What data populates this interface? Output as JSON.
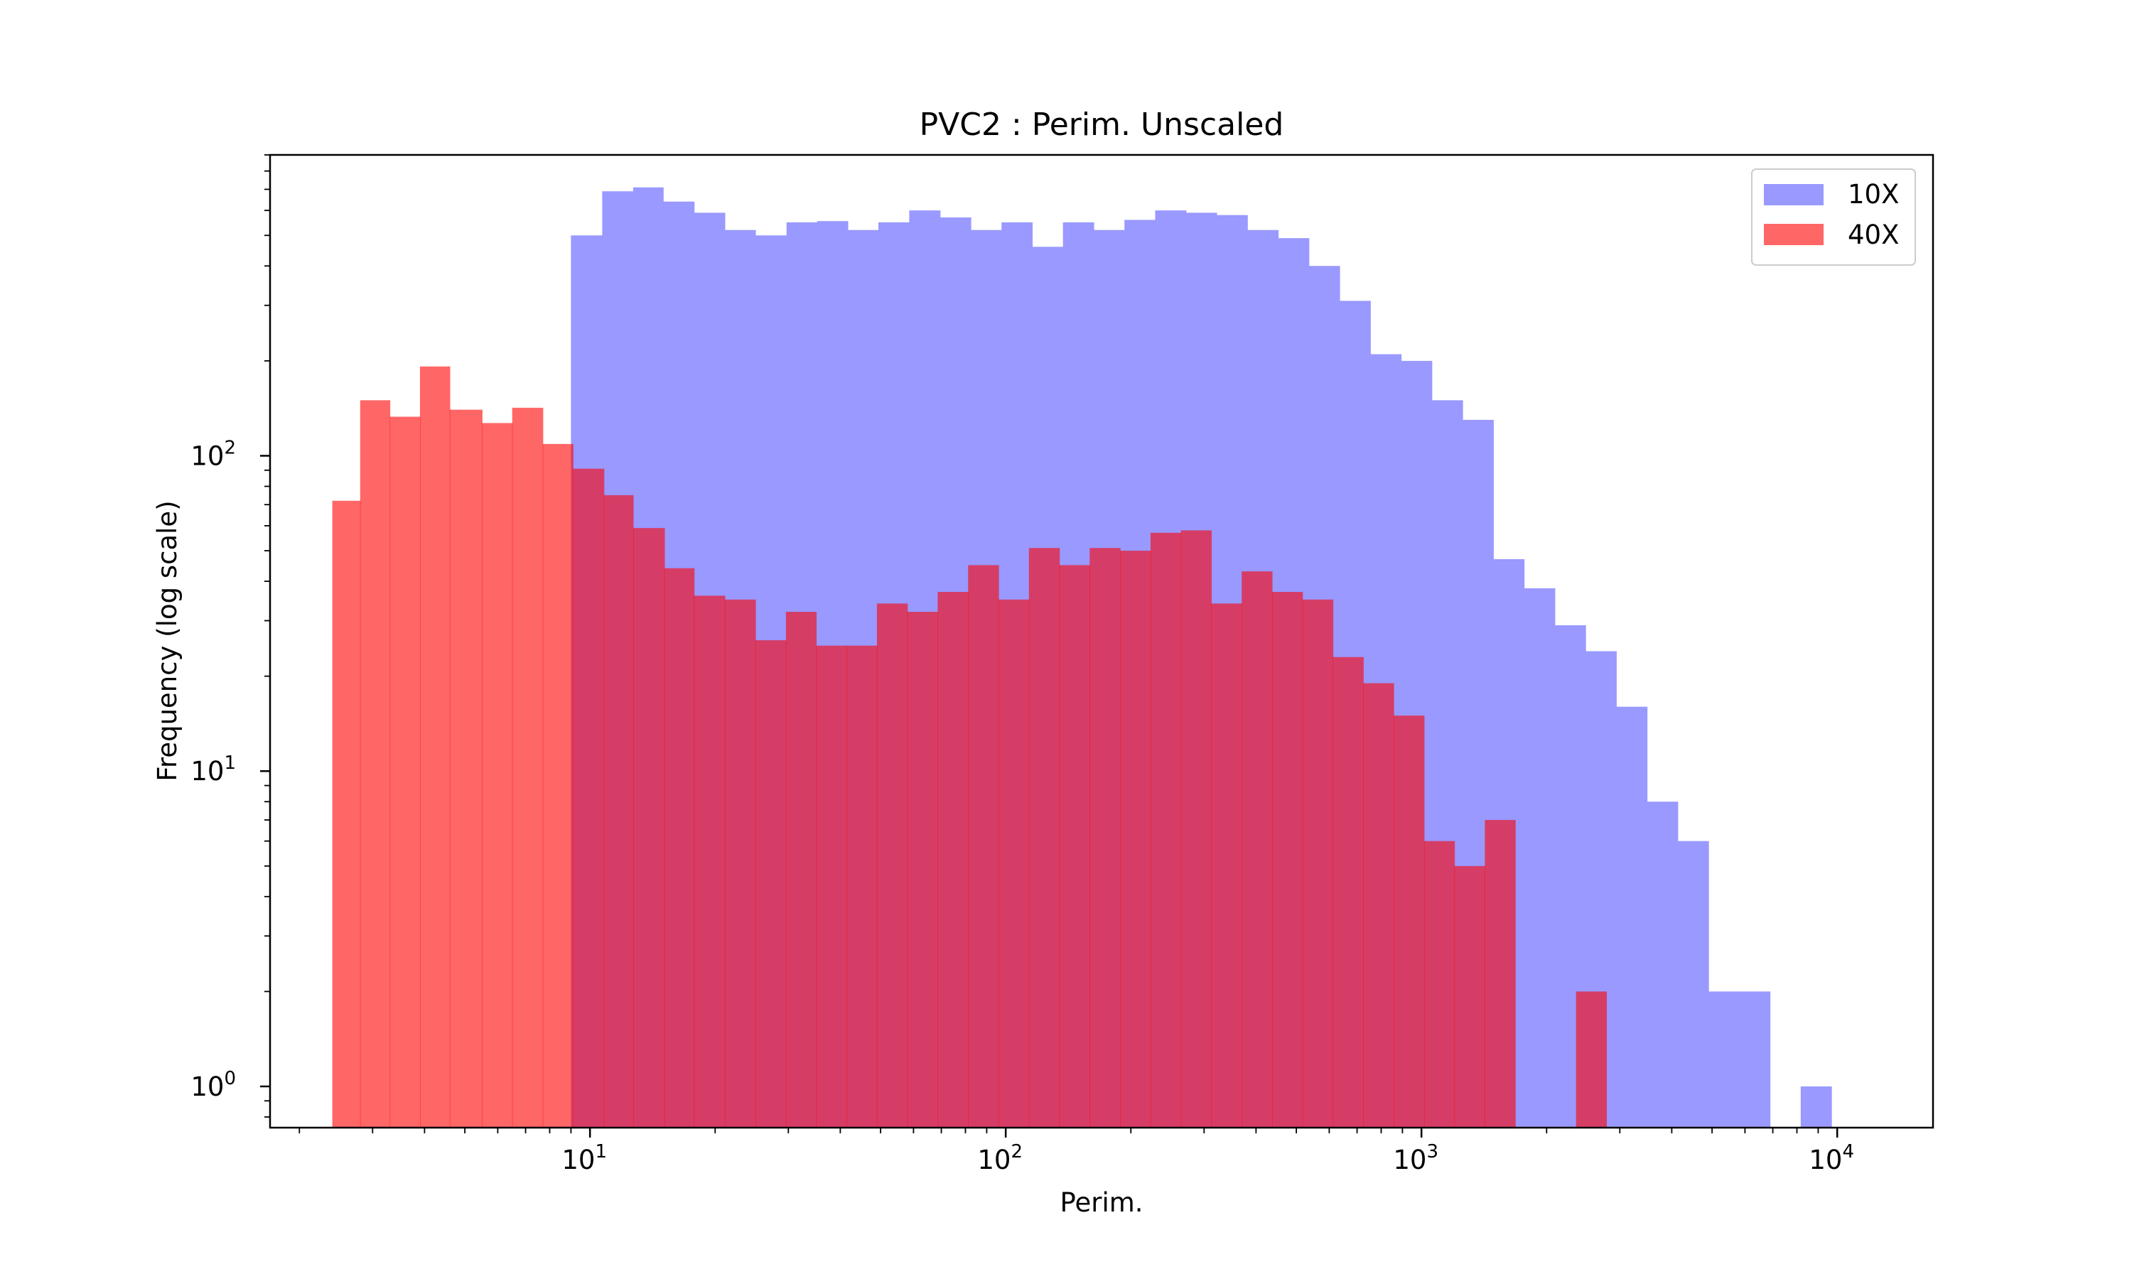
{
  "chart_data": {
    "type": "bar",
    "title": "PVC2 : Perim. Unscaled",
    "xlabel": "Perim.",
    "ylabel": "Frequency (log scale)",
    "xscale": "log",
    "yscale": "log",
    "xlim": [
      1.7,
      17000
    ],
    "ylim": [
      0.74,
      900
    ],
    "grid": false,
    "legend_position": "top-right",
    "x_ticks": [
      {
        "value": 10,
        "base": "10",
        "exp": "1"
      },
      {
        "value": 100,
        "base": "10",
        "exp": "2"
      },
      {
        "value": 1000,
        "base": "10",
        "exp": "3"
      },
      {
        "value": 10000,
        "base": "10",
        "exp": "4"
      }
    ],
    "y_ticks": [
      {
        "value": 1,
        "base": "10",
        "exp": "0"
      },
      {
        "value": 10,
        "base": "10",
        "exp": "1"
      },
      {
        "value": 100,
        "base": "10",
        "exp": "2"
      }
    ],
    "series": [
      {
        "name": "10X",
        "color": "#9999ff",
        "bin_edges": [
          9.0,
          10.7,
          12.7,
          15.0,
          17.8,
          21.1,
          25.0,
          29.7,
          35.2,
          41.7,
          49.4,
          58.6,
          69.5,
          82.4,
          97.7,
          115.8,
          137.3,
          162.8,
          193.0,
          228.8,
          271.3,
          321.6,
          381.3,
          452.1,
          536.0,
          635.5,
          753.5,
          893.3,
          1059.1,
          1255.7,
          1488.8,
          1765.1,
          2092.7,
          2481.1,
          2941.6,
          3487.6,
          4134.9,
          4902.3,
          5812.2,
          6890.9,
          8169.9,
          9686.2,
          11484.0
        ],
        "values": [
          500,
          690,
          710,
          640,
          590,
          520,
          500,
          550,
          555,
          520,
          550,
          600,
          570,
          520,
          550,
          460,
          550,
          520,
          560,
          600,
          590,
          580,
          520,
          490,
          400,
          310,
          210,
          200,
          150,
          130,
          47,
          38,
          29,
          24,
          16,
          8,
          6,
          2,
          2,
          0,
          1,
          0
        ]
      },
      {
        "name": "40X",
        "color": "#ff0000",
        "bin_edges": [
          2.4,
          2.8,
          3.3,
          3.9,
          4.6,
          5.5,
          6.5,
          7.7,
          9.1,
          10.8,
          12.7,
          15.1,
          17.8,
          21.1,
          25.0,
          29.6,
          35.0,
          41.4,
          49.0,
          58.0,
          68.6,
          81.2,
          96.1,
          113.7,
          134.6,
          159.2,
          188.4,
          223.0,
          263.8,
          312.2,
          369.5,
          437.2,
          517.3,
          612.2,
          724.4,
          857.2,
          1014.4,
          1200.4,
          1420.5,
          1680.9,
          1989.1,
          2353.8,
          2785.3,
          3296.0
        ],
        "values": [
          72,
          150,
          133,
          192,
          140,
          127,
          142,
          109,
          91,
          75,
          59,
          44,
          36,
          35,
          26,
          32,
          25,
          25,
          34,
          32,
          37,
          45,
          35,
          51,
          45,
          51,
          50,
          57,
          58,
          34,
          43,
          37,
          35,
          23,
          19,
          15,
          6,
          5,
          7,
          0,
          0,
          2,
          0
        ]
      }
    ]
  }
}
